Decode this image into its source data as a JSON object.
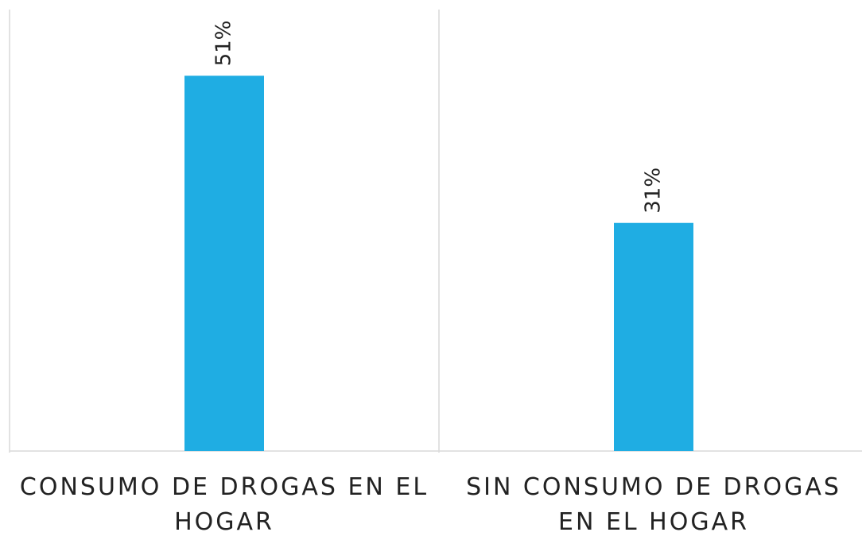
{
  "chart_data": {
    "type": "bar",
    "categories": [
      "CONSUMO DE DROGAS EN EL HOGAR",
      "SIN CONSUMO DE DROGAS EN EL HOGAR"
    ],
    "values": [
      51,
      31
    ],
    "value_labels": [
      "51%",
      "31%"
    ],
    "color": "#1fade3",
    "ylim": [
      0,
      60
    ]
  }
}
